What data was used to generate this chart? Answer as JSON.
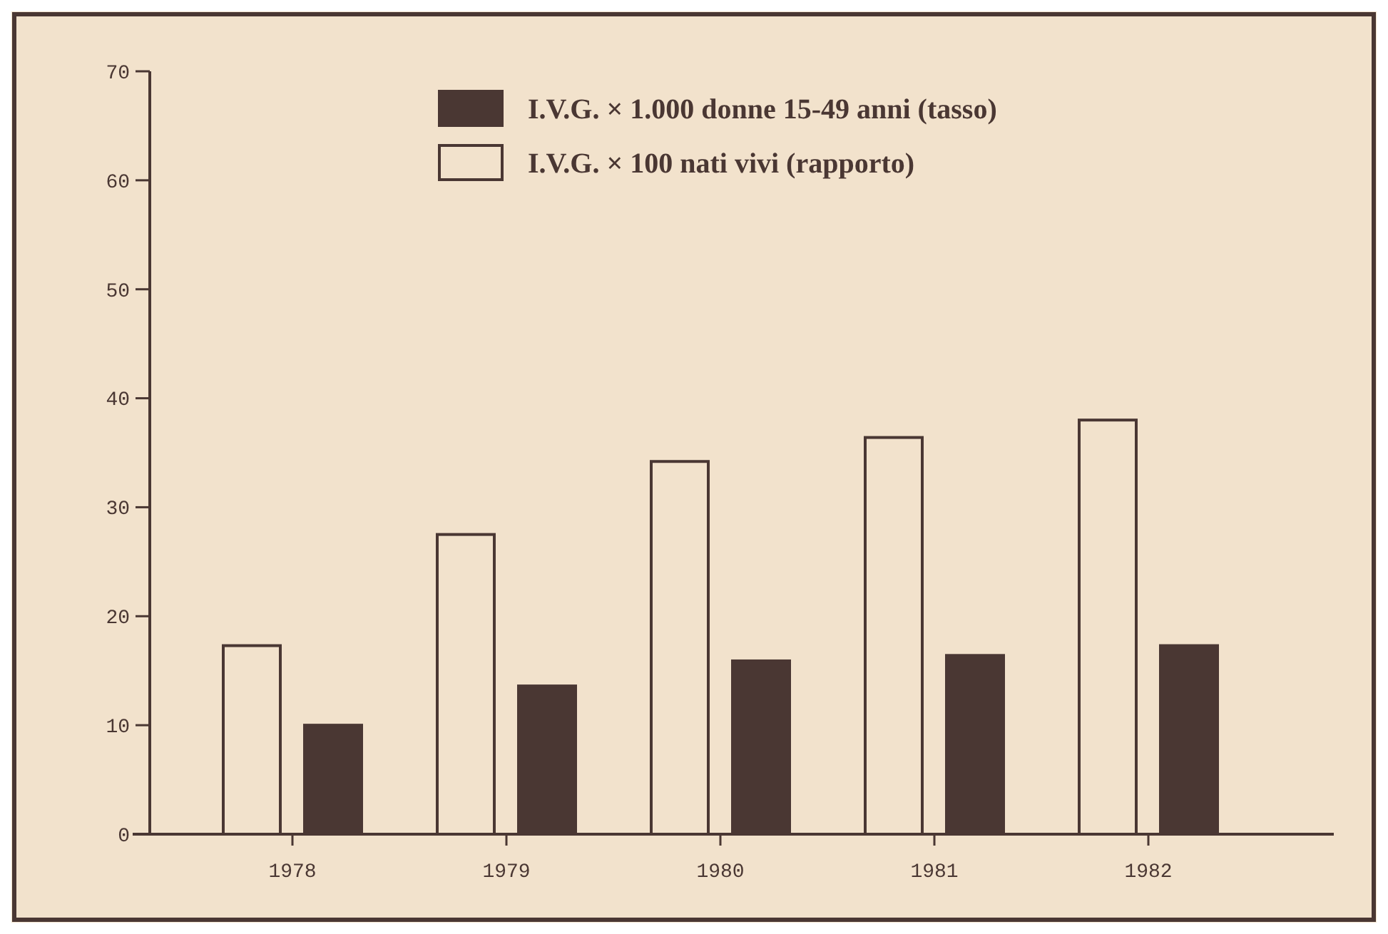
{
  "chart_data": {
    "type": "bar",
    "categories": [
      "1978",
      "1979",
      "1980",
      "1981",
      "1982"
    ],
    "series": [
      {
        "name": "I.V.G. × 100 nati vivi (rapporto)",
        "color": "#f2e2cc",
        "values": [
          17.3,
          27.5,
          34.2,
          36.4,
          38.0
        ]
      },
      {
        "name": "I.V.G. × 1.000 donne 15-49 anni (tasso)",
        "color": "#4a3733",
        "values": [
          10.0,
          13.6,
          15.9,
          16.4,
          17.3
        ]
      }
    ],
    "ylim": [
      0,
      70
    ],
    "yticks": [
      0,
      10,
      20,
      30,
      40,
      50,
      60,
      70
    ],
    "grid": false,
    "legend": "top"
  }
}
